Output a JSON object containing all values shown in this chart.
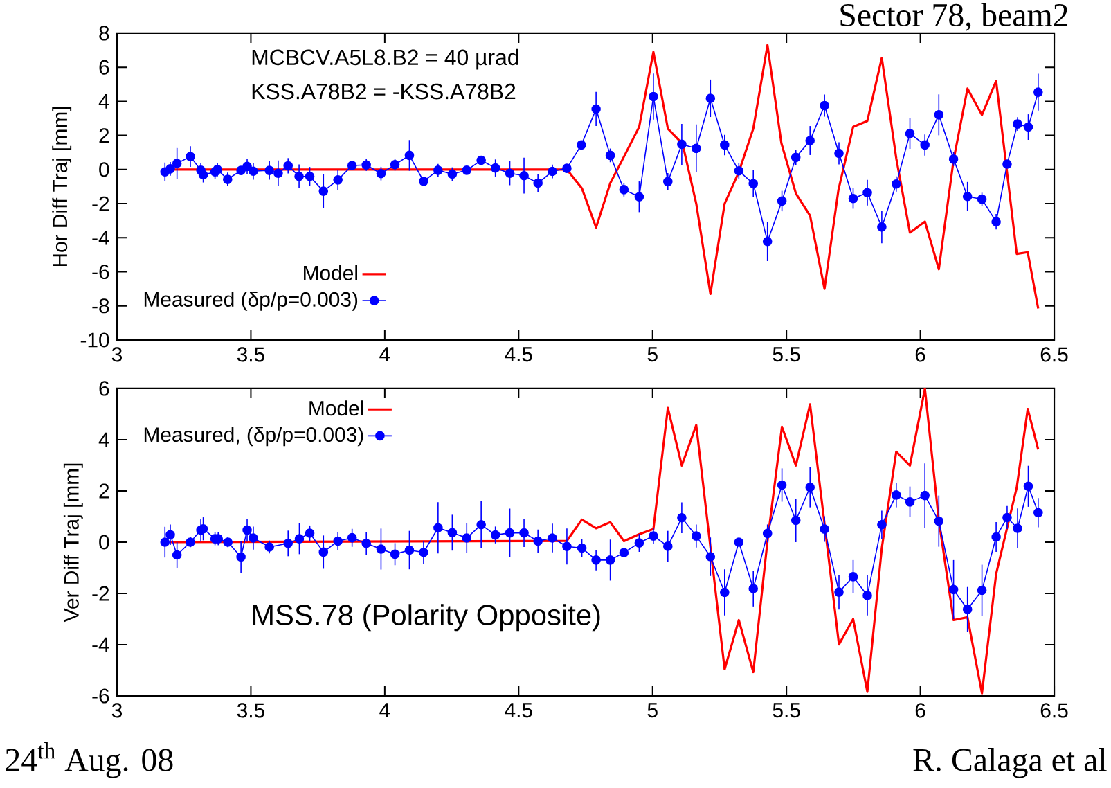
{
  "chart_data": [
    {
      "type": "line",
      "title": "Sector 78, beam2",
      "ylabel": "Hor Diff Traj [mm]",
      "annotations": [
        "MCBCV.A5L8.B2 = 40 µrad",
        "KSS.A78B2 = -KSS.A78B2"
      ],
      "xlim": [
        3,
        6.5
      ],
      "xticks": [
        3,
        3.5,
        4,
        4.5,
        5,
        5.5,
        6,
        6.5
      ],
      "ylim": [
        -10,
        8
      ],
      "yticks": [
        -10,
        -8,
        -6,
        -4,
        -2,
        0,
        2,
        4,
        6,
        8
      ],
      "legend": "bottom left",
      "series": [
        {
          "name": "Model",
          "color": "#ff0000",
          "marker": "none",
          "x": [
            3.199,
            4.68,
            4.736,
            4.789,
            4.842,
            4.893,
            4.95,
            5.003,
            5.057,
            5.112,
            5.163,
            5.216,
            5.269,
            5.322,
            5.376,
            5.429,
            5.481,
            5.535,
            5.588,
            5.642,
            5.694,
            5.749,
            5.802,
            5.856,
            5.91,
            5.961,
            6.017,
            6.069,
            6.124,
            6.176,
            6.23,
            6.283,
            6.36,
            6.401,
            6.44
          ],
          "values": [
            0,
            0,
            -1.1,
            -3.4,
            -0.8,
            0.75,
            2.5,
            6.9,
            2.4,
            1.5,
            -2.0,
            -7.3,
            -2.0,
            -0.15,
            2.4,
            7.3,
            1.55,
            -1.4,
            -2.7,
            -7.0,
            -1.2,
            2.5,
            2.85,
            6.55,
            0.65,
            -3.7,
            -3.05,
            -5.85,
            0.55,
            4.75,
            3.2,
            5.2,
            -4.95,
            -4.85,
            -8.15
          ]
        },
        {
          "name": "Measured (δp/p=0.003)",
          "color": "#0000ff",
          "marker": "circle",
          "x": [
            3.179,
            3.199,
            3.224,
            3.274,
            3.313,
            3.322,
            3.366,
            3.375,
            3.413,
            3.463,
            3.486,
            3.509,
            3.569,
            3.602,
            3.639,
            3.68,
            3.72,
            3.771,
            3.825,
            3.878,
            3.931,
            3.986,
            4.038,
            4.092,
            4.145,
            4.199,
            4.252,
            4.306,
            4.36,
            4.413,
            4.467,
            4.52,
            4.572,
            4.626,
            4.68,
            4.734,
            4.789,
            4.842,
            4.893,
            4.95,
            5.003,
            5.057,
            5.109,
            5.163,
            5.216,
            5.269,
            5.322,
            5.376,
            5.429,
            5.483,
            5.535,
            5.588,
            5.642,
            5.696,
            5.749,
            5.802,
            5.856,
            5.91,
            5.961,
            6.017,
            6.069,
            6.124,
            6.176,
            6.23,
            6.283,
            6.324,
            6.363,
            6.403,
            6.44
          ],
          "values": [
            -0.14,
            0.04,
            0.36,
            0.76,
            -0.04,
            -0.31,
            -0.14,
            0,
            -0.58,
            -0.05,
            0.18,
            -0.1,
            -0.05,
            -0.22,
            0.22,
            -0.4,
            -0.4,
            -1.27,
            -0.61,
            0.24,
            0.27,
            -0.24,
            0.29,
            0.83,
            -0.69,
            -0.04,
            -0.27,
            -0.04,
            0.54,
            0.09,
            -0.22,
            -0.36,
            -0.8,
            -0.11,
            0.07,
            1.44,
            3.55,
            0.83,
            -1.18,
            -1.6,
            4.28,
            -0.71,
            1.48,
            1.24,
            4.18,
            1.44,
            -0.08,
            -0.83,
            -4.22,
            -1.85,
            0.71,
            1.7,
            3.75,
            0.95,
            -1.7,
            -1.36,
            -3.37,
            -0.85,
            2.11,
            1.44,
            3.21,
            0.61,
            -1.58,
            -1.74,
            -3.06,
            0.32,
            2.67,
            2.49,
            4.54
          ],
          "errors": [
            0.55,
            0.4,
            0.9,
            0.6,
            0.4,
            0.45,
            0.4,
            0.4,
            0.4,
            0.2,
            0.45,
            0.5,
            0.55,
            0.75,
            0.45,
            0.7,
            0.55,
            1.0,
            0.6,
            0.25,
            0.35,
            0.4,
            0.35,
            0.9,
            0.2,
            0.37,
            0.4,
            0.2,
            0.2,
            0.5,
            0.7,
            1.05,
            0.55,
            0.4,
            0.15,
            0.2,
            1.0,
            0.4,
            0.4,
            0.9,
            1.35,
            0.5,
            1.2,
            1.4,
            1.1,
            0.6,
            0.45,
            0.8,
            1.15,
            0.6,
            0.45,
            0.85,
            0.65,
            0.65,
            0.6,
            0.75,
            0.95,
            0.45,
            0.9,
            0.62,
            1.2,
            0.4,
            0.85,
            0.38,
            0.45,
            null,
            0.4,
            0.75,
            1.08
          ]
        }
      ]
    },
    {
      "type": "line",
      "ylabel": "Ver Diff Traj [mm]",
      "annotations": [
        "MSS.78 (Polarity Opposite)",
        "24$^{th}$ Aug. 08",
        "R. Calaga et al"
      ],
      "xlim": [
        3,
        6.5
      ],
      "xticks": [
        3,
        3.5,
        4,
        4.5,
        5,
        5.5,
        6,
        6.5
      ],
      "ylim": [
        -6,
        6
      ],
      "yticks": [
        -6,
        -4,
        -2,
        0,
        2,
        4,
        6
      ],
      "legend": "top left",
      "series": [
        {
          "name": "Model",
          "color": "#ff0000",
          "marker": "none",
          "x": [
            3.199,
            4.68,
            4.736,
            4.789,
            4.842,
            4.893,
            4.95,
            5.003,
            5.057,
            5.109,
            5.163,
            5.216,
            5.269,
            5.322,
            5.376,
            5.429,
            5.483,
            5.535,
            5.588,
            5.642,
            5.696,
            5.749,
            5.802,
            5.856,
            5.91,
            5.961,
            6.017,
            6.069,
            6.124,
            6.176,
            6.23,
            6.283,
            6.36,
            6.401,
            6.44
          ],
          "values": [
            0,
            0.05,
            0.88,
            0.54,
            0.78,
            0.04,
            0.31,
            0.51,
            5.24,
            2.99,
            4.57,
            -0.2,
            -4.96,
            -3.04,
            -5.07,
            0.04,
            4.5,
            2.99,
            5.38,
            0.72,
            -3.99,
            -3.0,
            -5.84,
            -0.23,
            3.53,
            2.99,
            5.99,
            0.85,
            -3.04,
            -2.93,
            -5.9,
            -1.24,
            2.14,
            5.2,
            3.62
          ]
        },
        {
          "name": "Measured, (δp/p=0.003)",
          "color": "#0000ff",
          "marker": "circle",
          "x": [
            3.179,
            3.199,
            3.224,
            3.274,
            3.313,
            3.322,
            3.366,
            3.378,
            3.414,
            3.463,
            3.486,
            3.509,
            3.569,
            3.639,
            3.681,
            3.72,
            3.771,
            3.825,
            3.878,
            3.931,
            3.986,
            4.038,
            4.092,
            4.145,
            4.199,
            4.252,
            4.306,
            4.36,
            4.413,
            4.467,
            4.52,
            4.572,
            4.626,
            4.68,
            4.736,
            4.789,
            4.842,
            4.893,
            4.95,
            5.003,
            5.057,
            5.109,
            5.163,
            5.216,
            5.269,
            5.322,
            5.376,
            5.429,
            5.483,
            5.535,
            5.588,
            5.642,
            5.696,
            5.749,
            5.802,
            5.856,
            5.91,
            5.961,
            6.017,
            6.069,
            6.124,
            6.176,
            6.23,
            6.283,
            6.324,
            6.363,
            6.403,
            6.44
          ],
          "values": [
            0,
            0.29,
            -0.5,
            0,
            0.47,
            0.52,
            0.13,
            0.13,
            0,
            -0.58,
            0.47,
            0.16,
            -0.19,
            -0.05,
            0.13,
            0.35,
            -0.39,
            0.04,
            0.17,
            -0.05,
            -0.27,
            -0.47,
            -0.31,
            -0.4,
            0.56,
            0.37,
            0.16,
            0.68,
            0.28,
            0.36,
            0.36,
            0.04,
            0.16,
            -0.17,
            -0.23,
            -0.7,
            -0.7,
            -0.41,
            -0.03,
            0.24,
            -0.16,
            0.95,
            0.24,
            -0.57,
            -1.96,
            0,
            -1.81,
            0.34,
            2.23,
            0.85,
            2.14,
            0.51,
            -1.95,
            -1.35,
            -2.08,
            0.68,
            1.84,
            1.57,
            1.82,
            0.82,
            -1.85,
            -2.62,
            -1.88,
            0.2,
            0.96,
            0.54,
            2.18,
            1.15
          ],
          "errors": [
            0.6,
            0.4,
            0.5,
            0.2,
            0.45,
            0.45,
            0.25,
            0.25,
            0.2,
            0.62,
            0.45,
            0.45,
            0.25,
            0.5,
            0.6,
            0.3,
            0.65,
            0.35,
            0.35,
            0.45,
            0.8,
            0.43,
            0.75,
            0.45,
            1.0,
            0.7,
            0.58,
            0.92,
            0.33,
            0.95,
            0.55,
            0.45,
            0.56,
            0.7,
            0.35,
            0.4,
            0.8,
            0.15,
            0.35,
            0.3,
            0.6,
            0.6,
            0.45,
            0.75,
            0.9,
            null,
            0.7,
            0.35,
            0.65,
            0.85,
            0.78,
            0.5,
            0.68,
            0.65,
            0.78,
            0.55,
            0.48,
            0.6,
            1.25,
            1.0,
            1.15,
            0.87,
            1.0,
            0.58,
            0.45,
            0.78,
            0.8,
            0.57
          ]
        }
      ]
    }
  ]
}
